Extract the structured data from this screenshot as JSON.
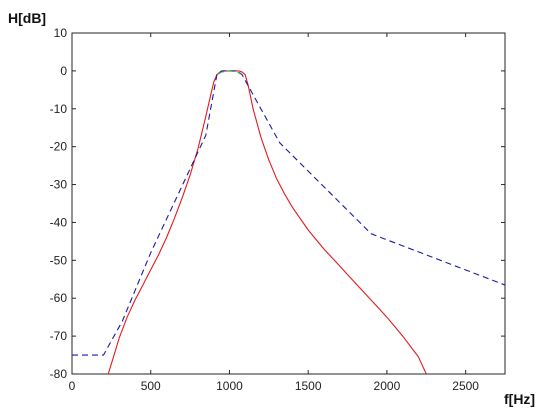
{
  "chart_data": {
    "type": "line",
    "title": "",
    "xlabel": "f[Hz]",
    "ylabel": "H[dB]",
    "xlim": [
      0,
      2750
    ],
    "ylim": [
      -80,
      10
    ],
    "xticks": [
      0,
      500,
      1000,
      1500,
      2000,
      2500
    ],
    "yticks": [
      10,
      0,
      -10,
      -20,
      -30,
      -40,
      -50,
      -60,
      -70,
      -80
    ],
    "grid": false,
    "legend": "none",
    "series": [
      {
        "color": "#e31a1c",
        "style": "solid",
        "x": [
          230,
          260,
          300,
          350,
          400,
          450,
          500,
          550,
          600,
          650,
          700,
          750,
          800,
          850,
          880,
          900,
          920,
          940,
          960,
          980,
          1000,
          1020,
          1040,
          1060,
          1080,
          1100,
          1120,
          1150,
          1200,
          1250,
          1300,
          1350,
          1400,
          1500,
          1600,
          1700,
          1800,
          1900,
          2000,
          2100,
          2200,
          2250
        ],
        "y": [
          -80,
          -76,
          -70.5,
          -65,
          -60.5,
          -56.5,
          -52.5,
          -48.5,
          -44,
          -39,
          -33.5,
          -27.5,
          -20.5,
          -12,
          -6.5,
          -3,
          -1,
          -0.3,
          0,
          0,
          0,
          0,
          0,
          0,
          -0.3,
          -1,
          -4,
          -10,
          -17.5,
          -23.5,
          -28.5,
          -32.5,
          -36,
          -42,
          -47,
          -51.5,
          -56,
          -60.5,
          -65,
          -70,
          -75.5,
          -80
        ]
      },
      {
        "color": "#1a1aaa",
        "style": "dashed",
        "x": [
          0,
          200,
          320,
          500,
          850,
          920,
          950,
          1050,
          1080,
          1120,
          1320,
          1900,
          2750
        ],
        "y": [
          -75,
          -75,
          -66,
          -48,
          -17,
          -1,
          0,
          0,
          -1,
          -4,
          -19,
          -43,
          -56.5
        ]
      },
      {
        "color": "#33aa33",
        "style": "dashed",
        "x": [
          930,
          950,
          1000,
          1050,
          1070
        ],
        "y": [
          -0.8,
          -0.3,
          0,
          -0.3,
          -0.8
        ]
      }
    ]
  }
}
